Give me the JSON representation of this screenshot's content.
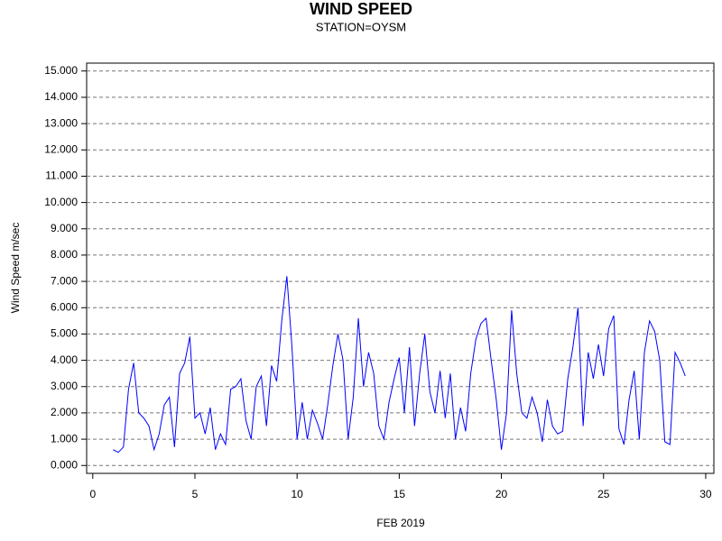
{
  "chart_data": {
    "type": "line",
    "title": "WIND SPEED",
    "subtitle": "STATION=OYSM",
    "x_label": "FEB 2019",
    "y_label": "Wind Speed m/sec",
    "x": [
      1,
      1.25,
      1.5,
      1.75,
      2,
      2.25,
      2.5,
      2.75,
      3,
      3.25,
      3.5,
      3.75,
      4,
      4.25,
      4.5,
      4.75,
      5,
      5.25,
      5.5,
      5.75,
      6,
      6.25,
      6.5,
      6.75,
      7,
      7.25,
      7.5,
      7.75,
      8,
      8.25,
      8.5,
      8.75,
      9,
      9.25,
      9.5,
      9.75,
      10,
      10.25,
      10.5,
      10.75,
      11,
      11.25,
      11.5,
      11.75,
      12,
      12.25,
      12.5,
      12.75,
      13,
      13.25,
      13.5,
      13.75,
      14,
      14.25,
      14.5,
      14.75,
      15,
      15.25,
      15.5,
      15.75,
      16,
      16.25,
      16.5,
      16.75,
      17,
      17.25,
      17.5,
      17.75,
      18,
      18.25,
      18.5,
      18.75,
      19,
      19.25,
      19.5,
      19.75,
      20,
      20.25,
      20.5,
      20.75,
      21,
      21.25,
      21.5,
      21.75,
      22,
      22.25,
      22.5,
      22.75,
      23,
      23.25,
      23.5,
      23.75,
      24,
      24.25,
      24.5,
      24.75,
      25,
      25.25,
      25.5,
      25.75,
      26,
      26.25,
      26.5,
      26.75,
      27,
      27.25,
      27.5,
      27.75,
      28,
      28.25,
      28.5,
      28.75,
      29
    ],
    "series": [
      {
        "name": "Wind Speed",
        "color": "#0000ff",
        "values": [
          0.6,
          0.5,
          0.7,
          2.9,
          3.9,
          2.0,
          1.8,
          1.5,
          0.6,
          1.2,
          2.3,
          2.6,
          0.7,
          3.5,
          3.9,
          4.9,
          1.8,
          2.0,
          1.2,
          2.2,
          0.6,
          1.2,
          0.8,
          2.9,
          3.0,
          3.3,
          1.7,
          1.0,
          3.0,
          3.4,
          1.5,
          3.8,
          3.2,
          5.5,
          7.2,
          4.5,
          1.0,
          2.4,
          1.0,
          2.1,
          1.6,
          1.0,
          2.3,
          3.8,
          5.0,
          4.0,
          1.0,
          2.6,
          5.6,
          3.0,
          4.3,
          3.5,
          1.5,
          1.0,
          2.4,
          3.3,
          4.1,
          2.0,
          4.5,
          1.5,
          3.5,
          5.0,
          2.8,
          2.0,
          3.6,
          1.8,
          3.5,
          1.0,
          2.2,
          1.3,
          3.5,
          4.8,
          5.4,
          5.6,
          4.0,
          2.5,
          0.6,
          2.0,
          5.9,
          3.5,
          2.0,
          1.8,
          2.6,
          2.0,
          0.9,
          2.5,
          1.5,
          1.2,
          1.3,
          3.3,
          4.5,
          6.0,
          1.5,
          4.3,
          3.3,
          4.6,
          3.4,
          5.2,
          5.7,
          1.4,
          0.8,
          2.5,
          3.6,
          1.0,
          4.3,
          5.5,
          5.1,
          4.0,
          0.9,
          0.8,
          4.3,
          3.9,
          3.4
        ]
      }
    ],
    "xlim": [
      -0.3,
      30.4
    ],
    "xticks": [
      0,
      5,
      10,
      15,
      20,
      25,
      30
    ],
    "ylim": [
      -0.3,
      15.3
    ],
    "yticks": [
      {
        "value": 0,
        "label": "0.000"
      },
      {
        "value": 1,
        "label": "1.000"
      },
      {
        "value": 2,
        "label": "2.000"
      },
      {
        "value": 3,
        "label": "3.000"
      },
      {
        "value": 4,
        "label": "4.000"
      },
      {
        "value": 5,
        "label": "5.000"
      },
      {
        "value": 6,
        "label": "6.000"
      },
      {
        "value": 7,
        "label": "7.000"
      },
      {
        "value": 8,
        "label": "8.000"
      },
      {
        "value": 9,
        "label": "9.000"
      },
      {
        "value": 10,
        "label": "10.000"
      },
      {
        "value": 11,
        "label": "11.000"
      },
      {
        "value": 12,
        "label": "12.000"
      },
      {
        "value": 13,
        "label": "13.000"
      },
      {
        "value": 14,
        "label": "14.000"
      },
      {
        "value": 15,
        "label": "15.000"
      }
    ],
    "grid": true
  }
}
